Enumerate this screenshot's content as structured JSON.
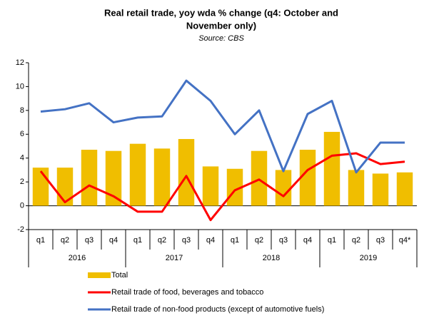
{
  "chart_data": {
    "type": "bar_line",
    "title": [
      "Real retail trade, yoy wda % change (q4: October and",
      "November only)"
    ],
    "subtitle": "Source: CBS",
    "categories": [
      "q1",
      "q2",
      "q3",
      "q4",
      "q1",
      "q2",
      "q3",
      "q4",
      "q1",
      "q2",
      "q3",
      "q4",
      "q1",
      "q2",
      "q3",
      "q4*"
    ],
    "years": [
      "2016",
      "2017",
      "2018",
      "2019"
    ],
    "series": [
      {
        "name": "Total",
        "kind": "bar",
        "color": "#f0be00",
        "values": [
          3.2,
          3.2,
          4.7,
          4.6,
          5.2,
          4.8,
          5.6,
          3.3,
          3.1,
          4.6,
          3.0,
          4.7,
          6.2,
          3.0,
          2.7,
          2.8
        ]
      },
      {
        "name": "Retail trade of food, beverages and tobacco",
        "kind": "line",
        "color": "#ff0000",
        "values": [
          2.9,
          0.3,
          1.7,
          0.8,
          -0.5,
          -0.5,
          2.5,
          -1.2,
          1.3,
          2.2,
          0.8,
          3.0,
          4.2,
          4.4,
          3.5,
          3.7
        ]
      },
      {
        "name": "Retail trade of non-food products (except of automotive fuels)",
        "kind": "line",
        "color": "#4472c4",
        "values": [
          7.9,
          8.1,
          8.6,
          7.0,
          7.4,
          7.5,
          10.5,
          8.8,
          6.0,
          8.0,
          2.9,
          7.7,
          8.8,
          2.8,
          5.3,
          5.3
        ]
      }
    ],
    "ylim": [
      -2,
      12
    ],
    "yticks": [
      -2,
      0,
      2,
      4,
      6,
      8,
      10,
      12
    ]
  }
}
